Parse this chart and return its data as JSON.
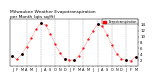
{
  "title": "Milwaukee Weather Evapotranspiration\nper Month (qts sq/ft)",
  "title_fontsize": 3.2,
  "background_color": "#ffffff",
  "grid_color": "#999999",
  "line_color": "#ff0000",
  "legend_label": "Evapotranspiration",
  "legend_color": "#ff0000",
  "months": [
    "J",
    "F",
    "M",
    "A",
    "M",
    "J",
    "J",
    "A",
    "S",
    "O",
    "N",
    "D",
    "J",
    "F",
    "M",
    "A",
    "M",
    "J",
    "J",
    "A",
    "S",
    "O",
    "N",
    "D",
    "J",
    "F",
    "M"
  ],
  "values": [
    3.5,
    2.2,
    4.0,
    6.5,
    9.5,
    12.5,
    14.5,
    14.0,
    11.0,
    7.5,
    4.5,
    2.5,
    2.0,
    2.0,
    3.5,
    6.0,
    9.0,
    12.0,
    14.2,
    13.5,
    10.5,
    7.0,
    4.2,
    2.2,
    2.0,
    1.8,
    3.2
  ],
  "black_pos": [
    0,
    2,
    6,
    11,
    13,
    18,
    24,
    26
  ],
  "vgrid_pos": [
    3,
    6,
    9,
    12,
    15,
    18,
    21,
    24
  ],
  "ylim": [
    0,
    16
  ],
  "yticks": [
    2,
    4,
    6,
    8,
    10,
    12,
    14
  ],
  "ytick_fontsize": 2.8,
  "xtick_fontsize": 2.5
}
